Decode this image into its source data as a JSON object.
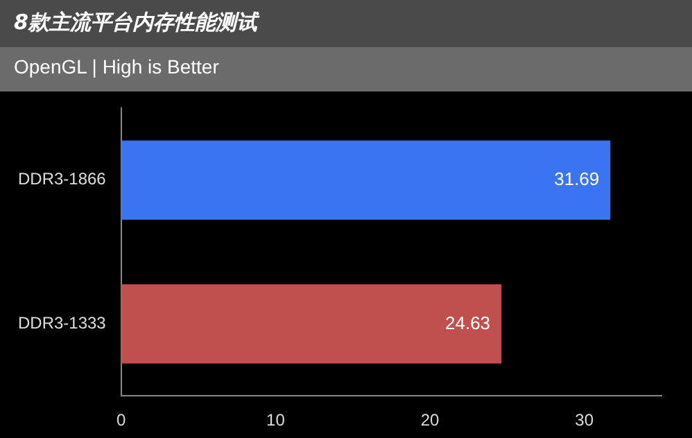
{
  "chart_data": {
    "type": "bar",
    "orientation": "horizontal",
    "title": "8款主流平台内存性能测试",
    "subtitle": "OpenGL | High is Better",
    "categories": [
      "DDR3-1866",
      "DDR3-1333"
    ],
    "values": [
      31.69,
      24.63
    ],
    "colors": [
      "#3b74f0",
      "#c0504d"
    ],
    "xlim": [
      0,
      35
    ],
    "xticks": [
      0,
      10,
      20,
      30
    ],
    "grid": false,
    "legend": false,
    "data_labels": true
  }
}
